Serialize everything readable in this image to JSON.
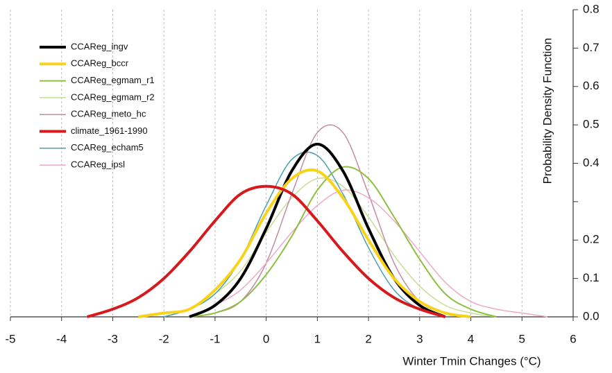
{
  "chart_data": {
    "type": "line",
    "x_label": "Winter Tmin Changes (°C)",
    "y_label": "Probability Density Function",
    "x": [
      -3.5,
      -3,
      -2.5,
      -2,
      -1.5,
      -1,
      -0.5,
      0,
      0.5,
      1,
      1.5,
      2,
      2.5,
      3,
      3.5,
      4,
      4.5,
      5,
      5.5
    ],
    "series": [
      {
        "name": "CCAReg_ingv",
        "color": "#000000",
        "line_width": 4,
        "values": [
          null,
          null,
          null,
          null,
          0,
          0.03,
          0.1,
          0.23,
          0.38,
          0.45,
          0.38,
          0.23,
          0.1,
          0.03,
          0,
          null,
          null,
          null,
          null
        ]
      },
      {
        "name": "CCAReg_bccr",
        "color": "#f9d21a",
        "line_width": 4,
        "values": [
          null,
          null,
          0,
          0.01,
          0.02,
          0.07,
          0.15,
          0.27,
          0.36,
          0.38,
          0.31,
          0.2,
          0.1,
          0.04,
          0.01,
          0,
          null,
          null,
          null
        ]
      },
      {
        "name": "CCAReg_egmam_r1",
        "color": "#8ebf3f",
        "line_width": 2,
        "values": [
          null,
          null,
          null,
          null,
          0,
          0.01,
          0.04,
          0.11,
          0.21,
          0.33,
          0.39,
          0.36,
          0.26,
          0.15,
          0.06,
          0.02,
          0,
          null,
          null
        ]
      },
      {
        "name": "CCAReg_egmam_r2",
        "color": "#c8de93",
        "line_width": 1.5,
        "values": [
          null,
          null,
          null,
          0,
          0.02,
          0.06,
          0.12,
          0.22,
          0.31,
          0.36,
          0.34,
          0.26,
          0.16,
          0.08,
          0.03,
          0.01,
          0,
          null,
          null
        ]
      },
      {
        "name": "CCAReg_meto_hc",
        "color": "#c48aa6",
        "line_width": 1.5,
        "values": [
          null,
          null,
          null,
          null,
          0,
          0.01,
          0.04,
          0.14,
          0.32,
          0.48,
          0.48,
          0.32,
          0.14,
          0.04,
          0.01,
          0,
          null,
          null,
          null
        ]
      },
      {
        "name": "climate_1961-1990",
        "color": "#d7191c",
        "line_width": 4,
        "values": [
          0,
          0.02,
          0.05,
          0.1,
          0.17,
          0.25,
          0.32,
          0.34,
          0.32,
          0.25,
          0.17,
          0.1,
          0.05,
          0.02,
          0,
          null,
          null,
          null,
          null
        ]
      },
      {
        "name": "CCAReg_echam5",
        "color": "#4a9fb0",
        "line_width": 1.5,
        "values": [
          null,
          null,
          null,
          0,
          0.02,
          0.06,
          0.15,
          0.29,
          0.41,
          0.42,
          0.32,
          0.18,
          0.07,
          0.02,
          0,
          null,
          null,
          null,
          null
        ]
      },
      {
        "name": "CCAReg_ipsl",
        "color": "#f0a8c8",
        "line_width": 1.5,
        "values": [
          null,
          null,
          null,
          null,
          0,
          0.03,
          0.07,
          0.14,
          0.22,
          0.29,
          0.33,
          0.31,
          0.25,
          0.17,
          0.09,
          0.04,
          0.02,
          0.01,
          0
        ]
      }
    ],
    "xlim": [
      -5,
      6
    ],
    "xticks": [
      -5,
      -4,
      -3,
      -2,
      -1,
      0,
      1,
      2,
      3,
      4,
      5,
      6
    ],
    "ylim": [
      0,
      0.8
    ],
    "yticks": [
      {
        "value": 0,
        "label": "0.0"
      },
      {
        "value": 0.1,
        "label": "0.1"
      },
      {
        "value": 0.2,
        "label": "0.2"
      },
      {
        "value": 0.3,
        "label": null
      },
      {
        "value": 0.4,
        "label": "0.4"
      },
      {
        "value": 0.5,
        "label": "0.5"
      },
      {
        "value": 0.6,
        "label": "0.6"
      },
      {
        "value": 0.7,
        "label": "0.7"
      },
      {
        "value": 0.8,
        "label": "0.8"
      }
    ],
    "grid": true,
    "legend": "upper left"
  }
}
